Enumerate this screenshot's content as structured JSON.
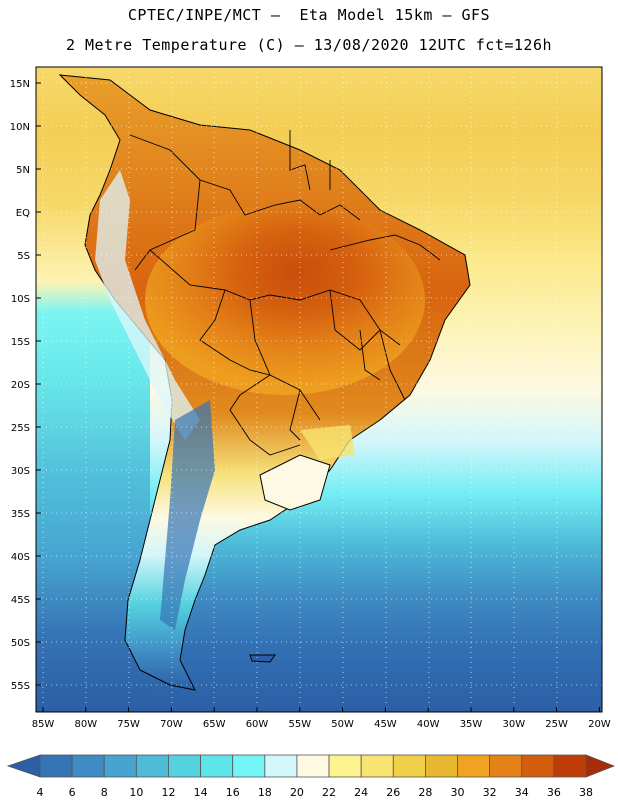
{
  "title_line1": "CPTEC/INPE/MCT –  Eta Model 15km – GFS",
  "title_line2": "2 Metre Temperature (C) – 13/08/2020 12UTC fct=126h",
  "lat_labels": [
    "15N",
    "10N",
    "5N",
    "EQ",
    "5S",
    "10S",
    "15S",
    "20S",
    "25S",
    "30S",
    "35S",
    "40S",
    "45S",
    "50S",
    "55S"
  ],
  "lon_labels": [
    "85W",
    "80W",
    "75W",
    "70W",
    "65W",
    "60W",
    "55W",
    "50W",
    "45W",
    "40W",
    "35W",
    "30W",
    "25W",
    "20W"
  ],
  "colorbar": {
    "ticks": [
      "4",
      "6",
      "8",
      "10",
      "12",
      "14",
      "16",
      "18",
      "20",
      "22",
      "24",
      "26",
      "28",
      "30",
      "32",
      "34",
      "36",
      "38"
    ],
    "colors": [
      "#2c5fa6",
      "#3574b5",
      "#3f8cc4",
      "#47a3d0",
      "#4dbbd8",
      "#55d2e0",
      "#5fe6ea",
      "#74f5f5",
      "#d3f6fa",
      "#fdf9e2",
      "#fdf48f",
      "#f8e470",
      "#f0d04a",
      "#e8b830",
      "#f0a320",
      "#e48218",
      "#d45e0e",
      "#bd3c08",
      "#a82c0a"
    ]
  }
}
